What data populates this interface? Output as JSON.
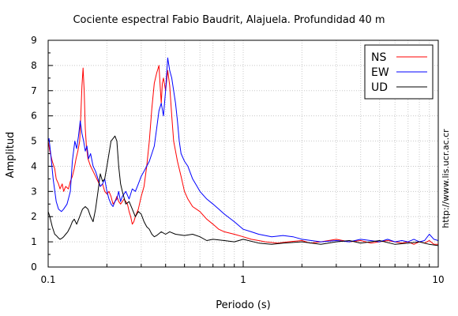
{
  "chart_data": {
    "type": "line",
    "title": "Cociente espectral Fabio Baudrit, Alajuela. Profundidad 40 m",
    "xlabel": "Periodo (s)",
    "ylabel": "Amplitud",
    "x_scale": "log",
    "xlim": [
      0.1,
      10
    ],
    "ylim": [
      0,
      9
    ],
    "x_ticks": [
      0.1,
      1,
      10
    ],
    "x_tick_labels": [
      "0.1",
      "1",
      "10"
    ],
    "y_ticks": [
      0,
      1,
      2,
      3,
      4,
      5,
      6,
      7,
      8,
      9
    ],
    "y_tick_labels": [
      "0",
      "1",
      "2",
      "3",
      "4",
      "5",
      "6",
      "7",
      "8",
      "9"
    ],
    "grid": true,
    "legend_position": "top-right",
    "watermark": "http://www.lis.ucr.ac.cr",
    "series": [
      {
        "name": "NS",
        "color": "#ff0000",
        "x": [
          0.1,
          0.102,
          0.105,
          0.108,
          0.11,
          0.113,
          0.115,
          0.118,
          0.12,
          0.123,
          0.127,
          0.13,
          0.133,
          0.136,
          0.139,
          0.142,
          0.145,
          0.147,
          0.149,
          0.151,
          0.153,
          0.155,
          0.157,
          0.16,
          0.165,
          0.17,
          0.175,
          0.18,
          0.185,
          0.19,
          0.195,
          0.2,
          0.205,
          0.21,
          0.215,
          0.22,
          0.225,
          0.23,
          0.235,
          0.24,
          0.245,
          0.25,
          0.255,
          0.26,
          0.265,
          0.27,
          0.275,
          0.28,
          0.29,
          0.3,
          0.31,
          0.32,
          0.33,
          0.34,
          0.35,
          0.36,
          0.37,
          0.375,
          0.38,
          0.385,
          0.39,
          0.4,
          0.41,
          0.42,
          0.43,
          0.44,
          0.45,
          0.46,
          0.48,
          0.5,
          0.52,
          0.55,
          0.6,
          0.65,
          0.7,
          0.75,
          0.8,
          0.9,
          1.0,
          1.1,
          1.2,
          1.3,
          1.5,
          1.7,
          2.0,
          2.2,
          2.5,
          3.0,
          3.5,
          4.0,
          4.5,
          5.0,
          5.5,
          6.0,
          6.5,
          7.0,
          7.5,
          8.0,
          8.5,
          9.0,
          9.5,
          10.0
        ],
        "y": [
          5.0,
          4.6,
          4.2,
          3.9,
          3.5,
          3.3,
          3.1,
          3.3,
          3.0,
          3.2,
          3.1,
          3.4,
          3.6,
          3.9,
          4.3,
          4.6,
          5.0,
          6.0,
          7.2,
          7.9,
          7.0,
          5.5,
          4.8,
          4.3,
          4.0,
          3.8,
          3.6,
          3.4,
          3.2,
          3.3,
          3.0,
          2.9,
          3.0,
          2.8,
          2.5,
          2.6,
          2.8,
          2.6,
          2.5,
          2.6,
          2.7,
          2.6,
          2.5,
          2.2,
          2.0,
          1.7,
          1.8,
          2.0,
          2.3,
          2.8,
          3.2,
          4.0,
          5.0,
          6.3,
          7.3,
          7.7,
          8.0,
          7.2,
          6.5,
          7.3,
          7.5,
          7.0,
          7.8,
          7.2,
          6.0,
          5.0,
          4.6,
          4.2,
          3.6,
          3.0,
          2.7,
          2.4,
          2.2,
          1.9,
          1.7,
          1.5,
          1.4,
          1.3,
          1.2,
          1.1,
          1.05,
          1.0,
          0.95,
          1.0,
          1.05,
          0.95,
          1.0,
          1.1,
          1.0,
          1.05,
          0.95,
          1.0,
          1.05,
          1.0,
          0.95,
          1.0,
          0.9,
          1.0,
          0.95,
          1.05,
          0.9,
          0.9
        ]
      },
      {
        "name": "EW",
        "color": "#0000ff",
        "x": [
          0.1,
          0.101,
          0.103,
          0.106,
          0.11,
          0.113,
          0.117,
          0.12,
          0.125,
          0.13,
          0.133,
          0.137,
          0.14,
          0.143,
          0.146,
          0.149,
          0.152,
          0.155,
          0.158,
          0.161,
          0.165,
          0.17,
          0.175,
          0.18,
          0.185,
          0.19,
          0.195,
          0.2,
          0.205,
          0.21,
          0.215,
          0.22,
          0.225,
          0.23,
          0.235,
          0.24,
          0.25,
          0.26,
          0.27,
          0.28,
          0.29,
          0.3,
          0.31,
          0.32,
          0.33,
          0.34,
          0.35,
          0.36,
          0.37,
          0.38,
          0.39,
          0.4,
          0.41,
          0.42,
          0.43,
          0.44,
          0.45,
          0.46,
          0.47,
          0.48,
          0.5,
          0.52,
          0.55,
          0.58,
          0.6,
          0.65,
          0.7,
          0.75,
          0.8,
          0.9,
          1.0,
          1.1,
          1.2,
          1.4,
          1.6,
          1.8,
          2.0,
          2.5,
          3.0,
          3.5,
          4.0,
          4.5,
          5.0,
          5.5,
          6.0,
          6.5,
          7.0,
          7.5,
          8.0,
          8.5,
          9.0,
          9.5,
          10.0
        ],
        "y": [
          5.0,
          5.1,
          4.5,
          3.5,
          2.6,
          2.3,
          2.2,
          2.3,
          2.5,
          3.0,
          4.2,
          5.0,
          4.7,
          5.2,
          5.8,
          5.3,
          5.0,
          4.6,
          4.8,
          4.3,
          4.5,
          4.0,
          3.8,
          3.5,
          3.2,
          3.3,
          3.5,
          3.0,
          2.7,
          2.5,
          2.4,
          2.6,
          2.7,
          3.0,
          2.6,
          2.8,
          3.0,
          2.7,
          3.1,
          3.0,
          3.3,
          3.6,
          3.8,
          4.0,
          4.2,
          4.5,
          4.8,
          5.5,
          6.2,
          6.5,
          6.0,
          7.0,
          8.3,
          7.8,
          7.5,
          7.0,
          6.5,
          5.8,
          5.0,
          4.5,
          4.2,
          4.0,
          3.5,
          3.2,
          3.0,
          2.7,
          2.5,
          2.3,
          2.1,
          1.8,
          1.5,
          1.4,
          1.3,
          1.2,
          1.25,
          1.2,
          1.1,
          1.0,
          1.05,
          1.0,
          1.1,
          1.05,
          1.0,
          1.1,
          1.0,
          1.05,
          1.0,
          1.1,
          1.0,
          1.05,
          1.3,
          1.1,
          1.05
        ]
      },
      {
        "name": "UD",
        "color": "#000000",
        "x": [
          0.1,
          0.102,
          0.105,
          0.108,
          0.11,
          0.113,
          0.115,
          0.118,
          0.12,
          0.123,
          0.126,
          0.13,
          0.133,
          0.136,
          0.14,
          0.145,
          0.15,
          0.155,
          0.16,
          0.165,
          0.17,
          0.175,
          0.18,
          0.185,
          0.19,
          0.195,
          0.2,
          0.205,
          0.21,
          0.215,
          0.22,
          0.225,
          0.23,
          0.235,
          0.24,
          0.25,
          0.26,
          0.27,
          0.28,
          0.29,
          0.3,
          0.31,
          0.32,
          0.33,
          0.34,
          0.35,
          0.36,
          0.38,
          0.4,
          0.42,
          0.45,
          0.5,
          0.55,
          0.6,
          0.65,
          0.7,
          0.8,
          0.9,
          1.0,
          1.2,
          1.4,
          1.6,
          2.0,
          2.5,
          3.0,
          3.5,
          4.0,
          4.5,
          5.0,
          6.0,
          7.0,
          8.0,
          9.0,
          10.0
        ],
        "y": [
          2.2,
          2.0,
          1.6,
          1.3,
          1.25,
          1.15,
          1.1,
          1.15,
          1.2,
          1.3,
          1.4,
          1.6,
          1.8,
          1.9,
          1.7,
          2.0,
          2.3,
          2.4,
          2.3,
          2.0,
          1.8,
          2.3,
          3.0,
          3.7,
          3.4,
          3.5,
          4.0,
          4.5,
          5.0,
          5.1,
          5.2,
          5.0,
          4.0,
          3.3,
          3.0,
          2.5,
          2.6,
          2.3,
          2.0,
          2.2,
          2.1,
          1.8,
          1.6,
          1.5,
          1.3,
          1.2,
          1.25,
          1.4,
          1.3,
          1.4,
          1.3,
          1.25,
          1.3,
          1.2,
          1.05,
          1.1,
          1.05,
          1.0,
          1.1,
          0.95,
          0.9,
          0.95,
          1.0,
          0.9,
          1.0,
          1.05,
          0.95,
          1.0,
          1.05,
          0.9,
          0.95,
          1.0,
          0.9,
          0.85
        ]
      }
    ]
  }
}
